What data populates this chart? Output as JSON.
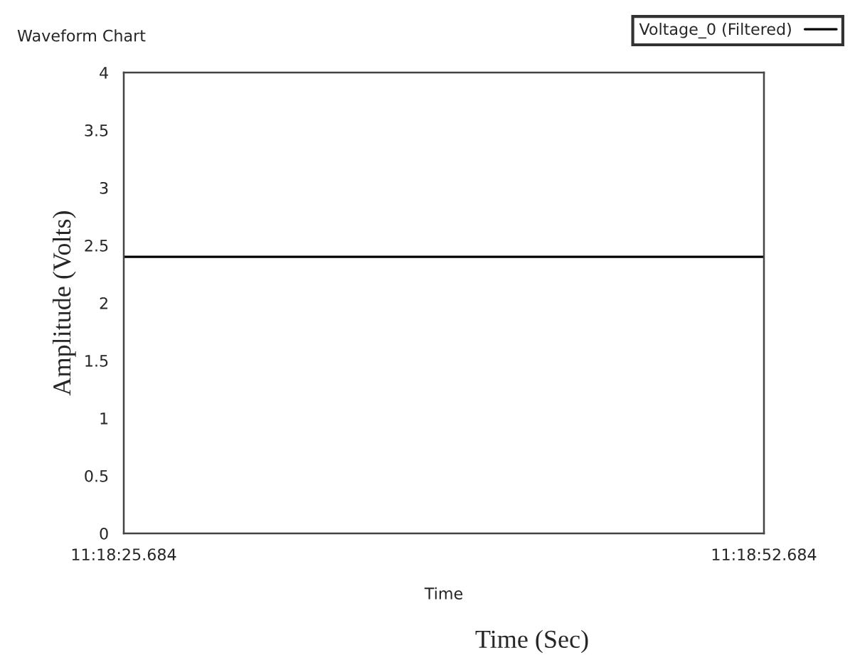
{
  "chart_data": {
    "type": "line",
    "title": "Waveform Chart",
    "xlabel": "Time",
    "ylabel": "Amplitude (Volts)",
    "annotations": [
      "Time (Sec)"
    ],
    "categories": [
      "11:18:25.684",
      "11:18:52.684"
    ],
    "series": [
      {
        "name": "Voltage_0 (Filtered)",
        "color": "#000000",
        "values": [
          2.4,
          2.4
        ]
      }
    ],
    "ylim": [
      0,
      4
    ],
    "yticks": [
      0,
      0.5,
      1,
      1.5,
      2,
      2.5,
      3,
      3.5,
      4
    ],
    "legend": "top right",
    "line_style": "solid"
  }
}
